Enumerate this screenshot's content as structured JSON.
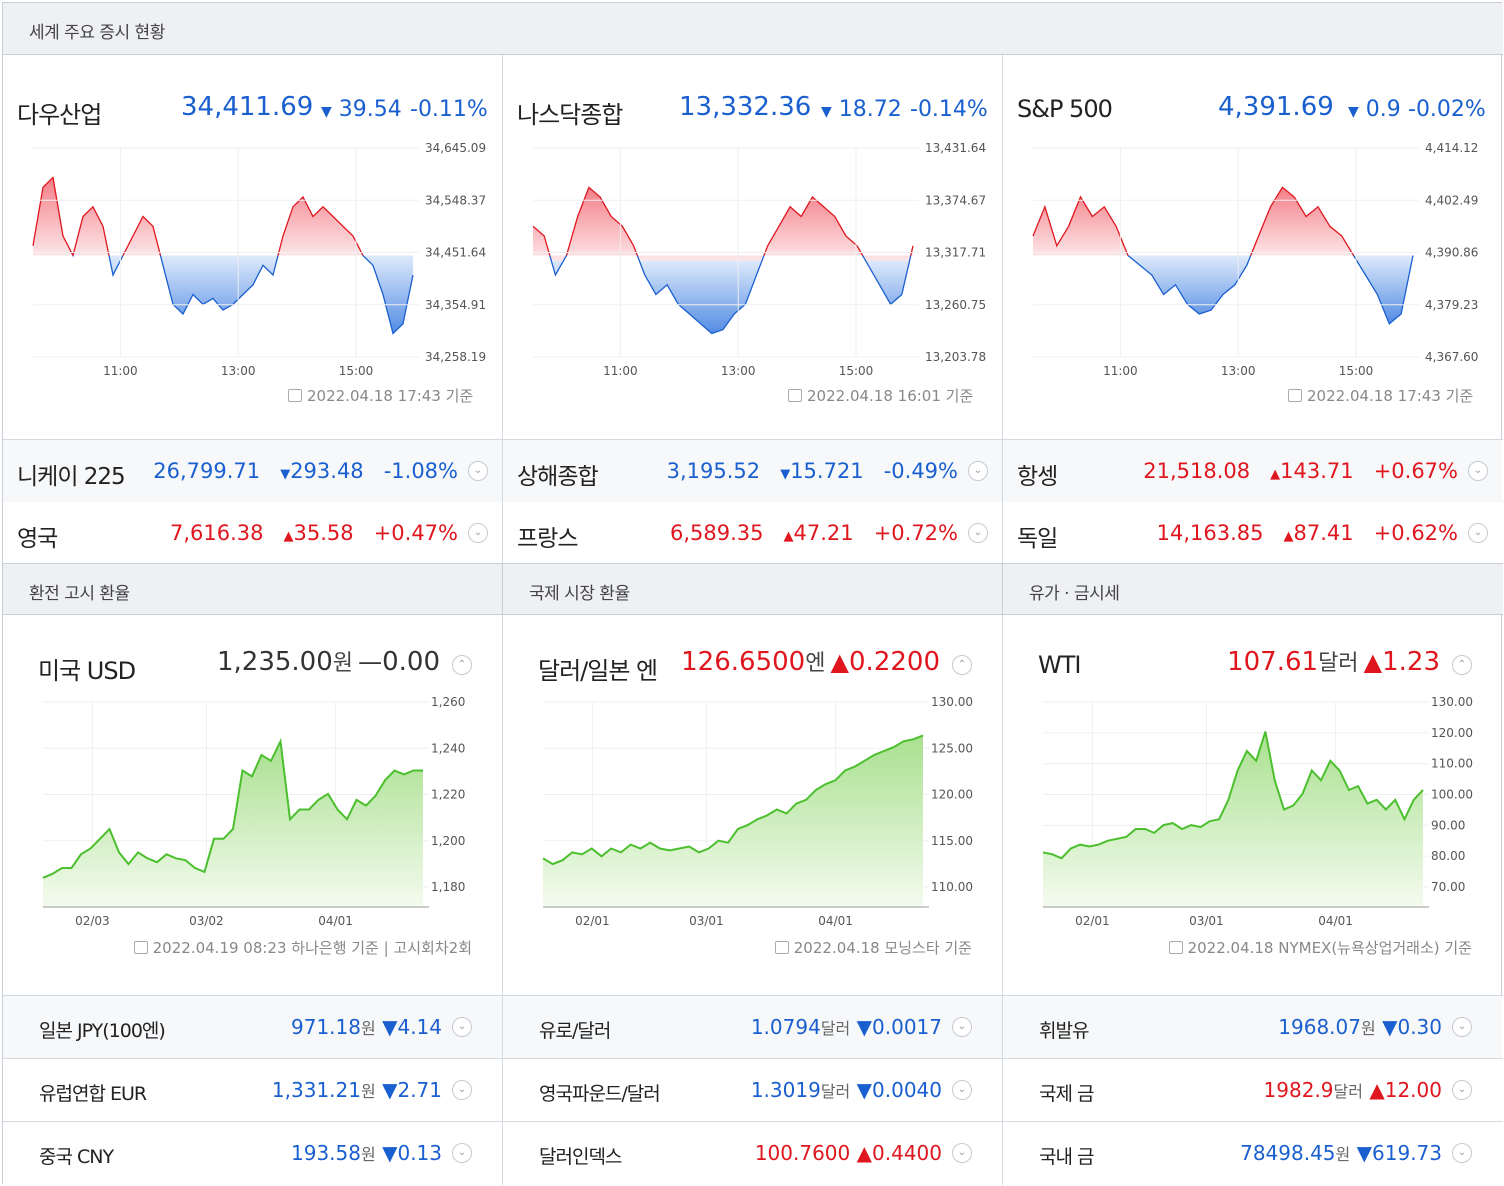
{
  "sections": {
    "world_indices_title": "세계 주요 증시 현황",
    "exchange_title": "환전 고시 환율",
    "intl_fx_title": "국제 시장 환율",
    "oil_gold_title": "유가 · 금시세"
  },
  "colors": {
    "up": "#e0161e",
    "down": "#1a5fcf",
    "green_line": "#4cbf2e"
  },
  "panels": [
    {
      "name": "다우산업",
      "value": "34,411.69",
      "arrow": "▼",
      "change": "39.54",
      "pct": "-0.11%",
      "timestamp": "2022.04.18 17:43 기준",
      "yticks": [
        "34,645.09",
        "34,548.37",
        "34,451.64",
        "34,354.91",
        "34,258.19"
      ],
      "xticks": [
        "11:00",
        "13:00",
        "15:00"
      ]
    },
    {
      "name": "나스닥종합",
      "value": "13,332.36",
      "arrow": "▼",
      "change": "18.72",
      "pct": "-0.14%",
      "timestamp": "2022.04.18 16:01 기준",
      "yticks": [
        "13,431.64",
        "13,374.67",
        "13,317.71",
        "13,260.75",
        "13,203.78"
      ],
      "xticks": [
        "11:00",
        "13:00",
        "15:00"
      ]
    },
    {
      "name": "S&P 500",
      "value": "4,391.69",
      "arrow": "▼",
      "change": "0.9",
      "pct": "-0.02%",
      "timestamp": "2022.04.18 17:43 기준",
      "yticks": [
        "4,414.12",
        "4,402.49",
        "4,390.86",
        "4,379.23",
        "4,367.60"
      ],
      "xticks": [
        "11:00",
        "13:00",
        "15:00"
      ]
    }
  ],
  "index_rows": [
    {
      "name": "니케이 225",
      "value": "26,799.71",
      "arrow": "▼",
      "change": "293.48",
      "pct": "-1.08%",
      "dir": "down"
    },
    {
      "name": "상해종합",
      "value": "3,195.52",
      "arrow": "▼",
      "change": "15.721",
      "pct": "-0.49%",
      "dir": "down"
    },
    {
      "name": "항셍",
      "value": "21,518.08",
      "arrow": "▲",
      "change": "143.71",
      "pct": "+0.67%",
      "dir": "up"
    },
    {
      "name": "영국",
      "value": "7,616.38",
      "arrow": "▲",
      "change": "35.58",
      "pct": "+0.47%",
      "dir": "up"
    },
    {
      "name": "프랑스",
      "value": "6,589.35",
      "arrow": "▲",
      "change": "47.21",
      "pct": "+0.72%",
      "dir": "up"
    },
    {
      "name": "독일",
      "value": "14,163.85",
      "arrow": "▲",
      "change": "87.41",
      "pct": "+0.62%",
      "dir": "up"
    }
  ],
  "fx_panels": [
    {
      "name": "미국 USD",
      "value": "1,235.00",
      "unit": "원",
      "arrow": "—",
      "change": "0.00",
      "dir": "flat",
      "timestamp": "2022.04.19 08:23 하나은행 기준 | 고시회차2회",
      "yticks": [
        "1,260",
        "1,240",
        "1,220",
        "1,200",
        "1,180"
      ],
      "xticks": [
        "02/03",
        "03/02",
        "04/01"
      ]
    },
    {
      "name": "달러/일본 엔",
      "value": "126.6500",
      "unit": "엔",
      "arrow": "▲",
      "change": "0.2200",
      "dir": "up",
      "timestamp": "2022.04.18 모닝스타 기준",
      "yticks": [
        "130.00",
        "125.00",
        "120.00",
        "115.00",
        "110.00"
      ],
      "xticks": [
        "02/01",
        "03/01",
        "04/01"
      ]
    },
    {
      "name": "WTI",
      "value": "107.61",
      "unit": "달러",
      "arrow": "▲",
      "change": "1.23",
      "dir": "up",
      "timestamp": "2022.04.18 NYMEX(뉴욕상업거래소) 기준",
      "yticks": [
        "130.00",
        "120.00",
        "110.00",
        "100.00",
        "90.00",
        "80.00",
        "70.00"
      ],
      "xticks": [
        "02/01",
        "03/01",
        "04/01"
      ]
    }
  ],
  "fx_rows": [
    [
      {
        "name": "일본 JPY(100엔)",
        "value": "971.18",
        "unit": "원",
        "arrow": "▼",
        "change": "4.14",
        "dir": "down"
      },
      {
        "name": "유럽연합 EUR",
        "value": "1,331.21",
        "unit": "원",
        "arrow": "▼",
        "change": "2.71",
        "dir": "down"
      },
      {
        "name": "중국 CNY",
        "value": "193.58",
        "unit": "원",
        "arrow": "▼",
        "change": "0.13",
        "dir": "down"
      }
    ],
    [
      {
        "name": "유로/달러",
        "value": "1.0794",
        "unit": "달러",
        "arrow": "▼",
        "change": "0.0017",
        "dir": "down"
      },
      {
        "name": "영국파운드/달러",
        "value": "1.3019",
        "unit": "달러",
        "arrow": "▼",
        "change": "0.0040",
        "dir": "down"
      },
      {
        "name": "달러인덱스",
        "value": "100.7600",
        "unit": "",
        "arrow": "▲",
        "change": "0.4400",
        "dir": "up"
      }
    ],
    [
      {
        "name": "휘발유",
        "value": "1968.07",
        "unit": "원",
        "arrow": "▼",
        "change": "0.30",
        "dir": "down"
      },
      {
        "name": "국제 금",
        "value": "1982.9",
        "unit": "달러",
        "arrow": "▲",
        "change": "12.00",
        "dir": "up"
      },
      {
        "name": "국내 금",
        "value": "78498.45",
        "unit": "원",
        "arrow": "▼",
        "change": "619.73",
        "dir": "down"
      }
    ]
  ]
}
